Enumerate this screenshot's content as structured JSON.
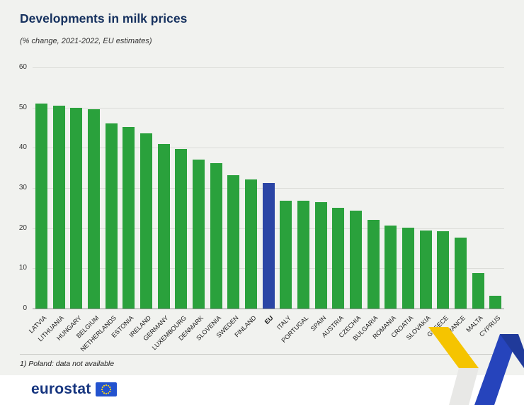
{
  "title": "Developments in milk prices",
  "subtitle": "(% change, 2021-2022, EU estimates)",
  "footnote": "1) Poland: data not available",
  "logo": {
    "text": "eurostat"
  },
  "colors": {
    "bar_green": "#2aa13c",
    "eu_bar_blue": "#2b45a5",
    "ribbon_yellow": "#f5c400",
    "ribbon_silver": "#e8e8e6",
    "ribbon_blue": "#2644bc",
    "ribbon_blue_dark": "#203a9a",
    "logo_flag_blue": "#2353cf",
    "star_yellow": "#ffd617"
  },
  "chart_data": {
    "type": "bar",
    "categories": [
      "LATVIA",
      "LITHUANIA",
      "HUNGARY",
      "BELGIUM",
      "NETHERLANDS",
      "ESTONIA",
      "IRELAND",
      "GERMANY",
      "LUXEMBOURG",
      "DENMARK",
      "SLOVENIA",
      "SWEDEN",
      "FINLAND",
      "EU",
      "ITALY",
      "PORTUGAL",
      "SPAIN",
      "AUSTRIA",
      "CZECHIA",
      "BULGARIA",
      "ROMANIA",
      "CROATIA",
      "SLOVAKIA",
      "GREECE",
      "FRANCE",
      "MALTA",
      "CYPRUS"
    ],
    "values": [
      51,
      50.4,
      50,
      49.6,
      46.1,
      45.2,
      43.6,
      40.9,
      39.7,
      37,
      36.1,
      33.1,
      32.1,
      31.3,
      26.9,
      26.8,
      26.5,
      25.1,
      24.4,
      22,
      20.6,
      20.2,
      19.5,
      19.2,
      17.7,
      8.8,
      3.2
    ],
    "highlight_category": "EU",
    "title": "Developments in milk prices",
    "xlabel": "",
    "ylabel": "",
    "ylim": [
      0,
      60
    ],
    "ytick_step": 10,
    "grid": true,
    "legend": "none"
  }
}
